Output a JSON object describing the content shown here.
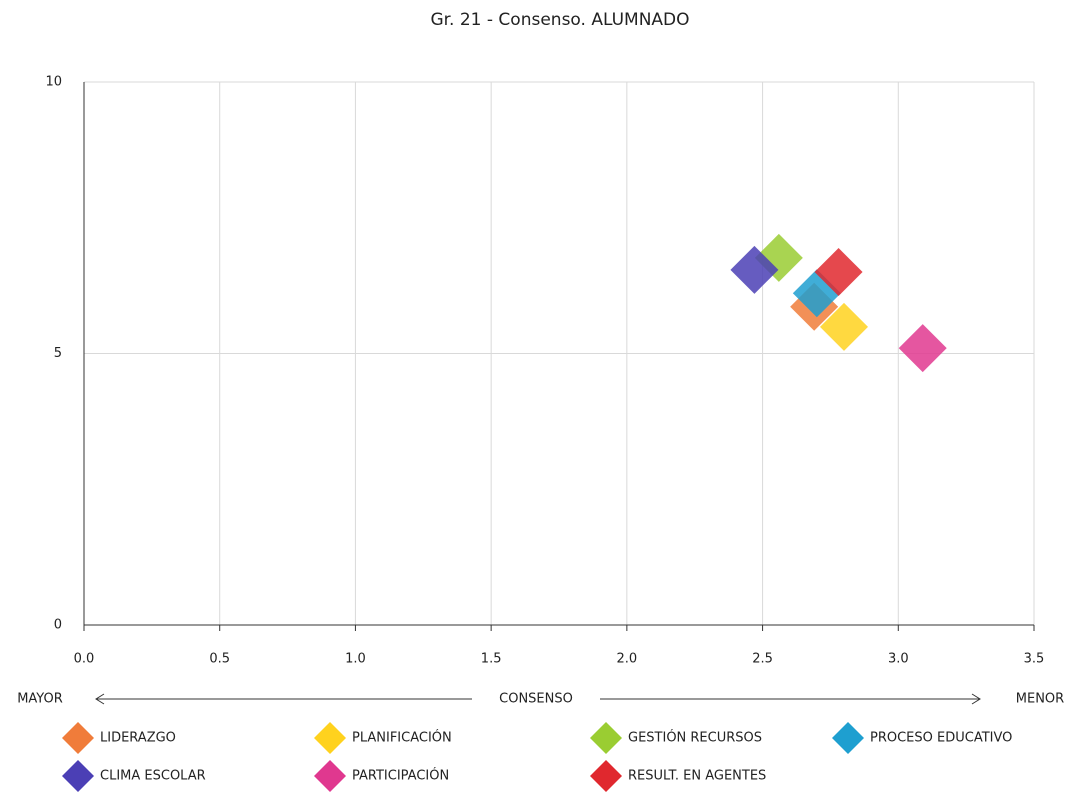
{
  "chart_data": {
    "type": "scatter",
    "title": "Gr. 21 - Consenso. ALUMNADO",
    "annotations": {
      "left": "MAYOR",
      "center": "CONSENSO",
      "right": "MENOR"
    },
    "series": [
      {
        "name": "LIDERAZGO",
        "color": "#f07c3a",
        "x": [
          2.69
        ],
        "values": [
          5.86
        ]
      },
      {
        "name": "PLANIFICACIÓN",
        "color": "#ffd21e",
        "x": [
          2.8
        ],
        "values": [
          5.49
        ]
      },
      {
        "name": "GESTIÓN RECURSOS",
        "color": "#9acd32",
        "x": [
          2.56
        ],
        "values": [
          6.76
        ]
      },
      {
        "name": "PROCESO EDUCATIVO",
        "color": "#1e9fd0",
        "x": [
          2.7
        ],
        "values": [
          6.11
        ]
      },
      {
        "name": "CLIMA ESCOLAR",
        "color": "#4b3fb5",
        "x": [
          2.47
        ],
        "values": [
          6.54
        ]
      },
      {
        "name": "PARTICIPACIÓN",
        "color": "#e0388f",
        "x": [
          3.09
        ],
        "values": [
          5.1
        ]
      },
      {
        "name": "RESULT. EN AGENTES",
        "color": "#e0282e",
        "x": [
          2.78
        ],
        "values": [
          6.5
        ]
      }
    ],
    "xlim": [
      0,
      3.5
    ],
    "xticks": [
      {
        "value": 0,
        "label": "0.0"
      },
      0.5,
      {
        "value": 1,
        "label": "1.0"
      },
      1.5,
      {
        "value": 2,
        "label": "2.0"
      },
      2.5,
      {
        "value": 3,
        "label": "3.0"
      },
      3.5
    ],
    "ylim": [
      0,
      10
    ],
    "yticks": [
      0,
      5,
      10
    ],
    "grid": true
  }
}
